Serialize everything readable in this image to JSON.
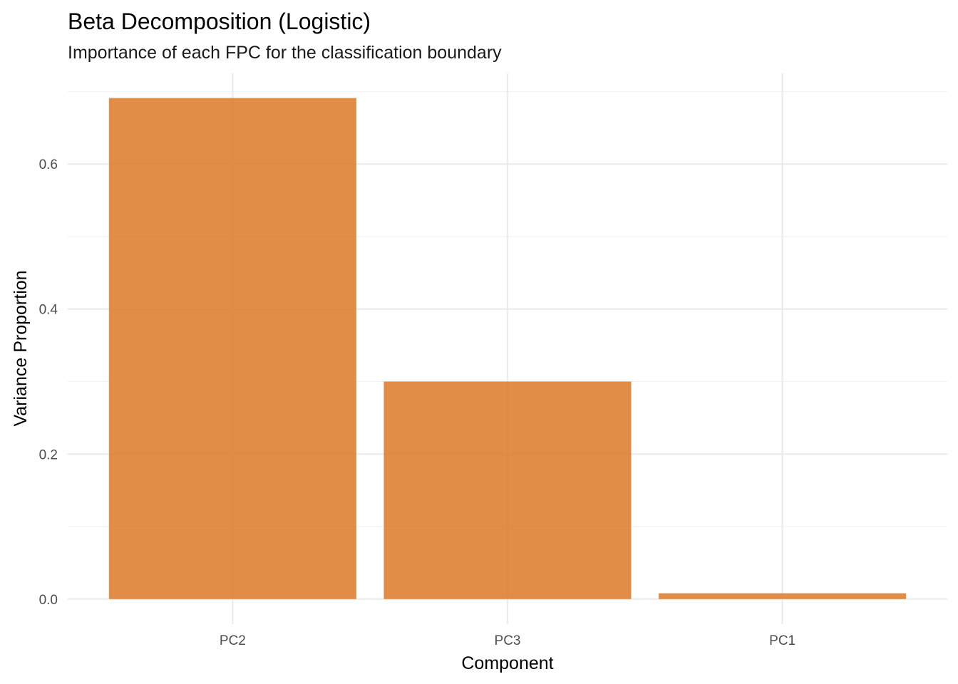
{
  "chart_data": {
    "type": "bar",
    "title": "Beta Decomposition (Logistic)",
    "subtitle": "Importance of each FPC for the classification boundary",
    "xlabel": "Component",
    "ylabel": "Variance Proportion",
    "categories": [
      "PC2",
      "PC3",
      "PC1"
    ],
    "values": [
      0.691,
      0.3,
      0.008
    ],
    "ylim": [
      -0.0346,
      0.725
    ],
    "yticks": [
      0.0,
      0.2,
      0.4,
      0.6
    ],
    "ytick_labels": [
      "0.0",
      "0.2",
      "0.4",
      "0.6"
    ],
    "grid": true,
    "legend": "none",
    "bar_color": "#DE8033",
    "bar_opacity": 0.9
  }
}
